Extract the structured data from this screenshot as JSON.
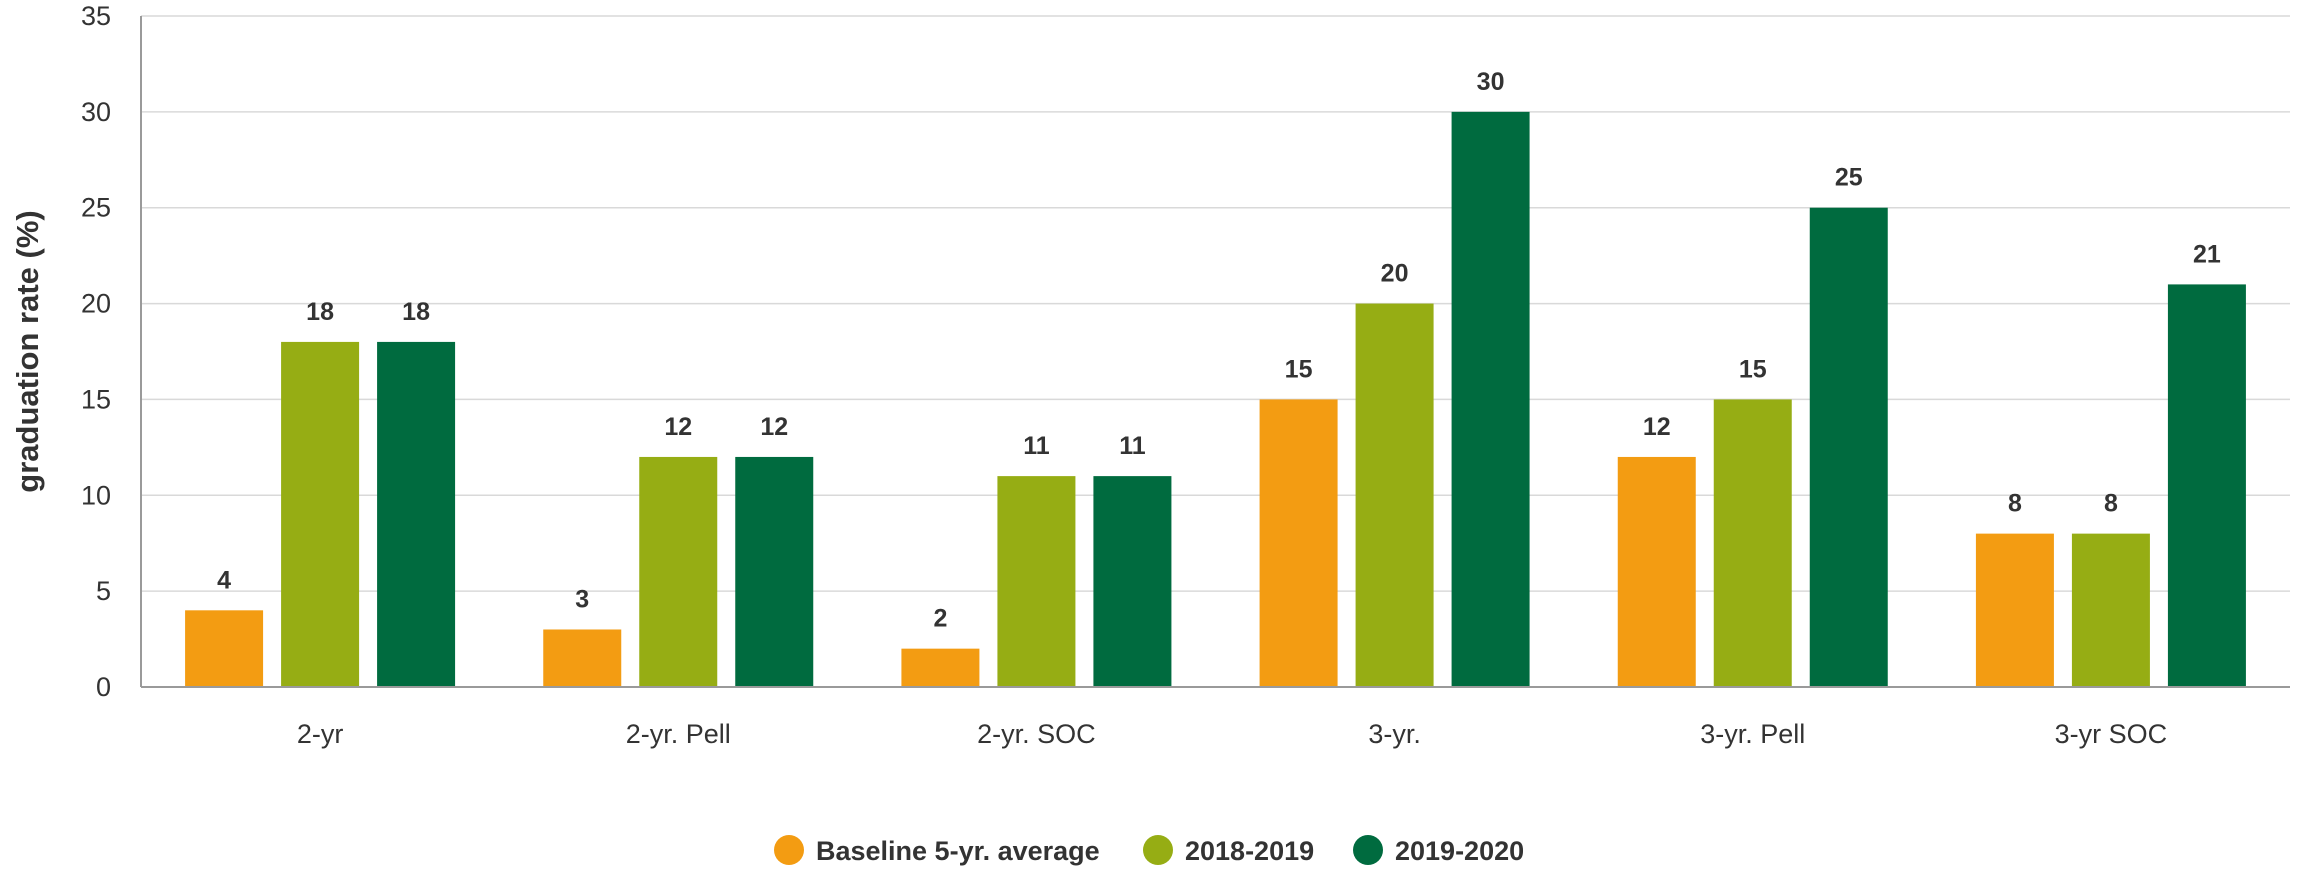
{
  "chart_data": {
    "type": "bar",
    "title": "",
    "xlabel": "",
    "ylabel": "graduation rate (%)",
    "ylim": [
      0,
      35
    ],
    "yticks": [
      0,
      5,
      10,
      15,
      20,
      25,
      30,
      35
    ],
    "grid": true,
    "legend_position": "bottom",
    "categories": [
      "2-yr",
      "2-yr. Pell",
      "2-yr. SOC",
      "3-yr.",
      "3-yr. Pell",
      "3-yr SOC"
    ],
    "series": [
      {
        "name": "Baseline 5-yr. average",
        "color": "#f39c12",
        "values": [
          4,
          3,
          2,
          15,
          12,
          8
        ]
      },
      {
        "name": "2018-2019",
        "color": "#96ad14",
        "values": [
          18,
          12,
          11,
          20,
          15,
          8
        ]
      },
      {
        "name": "2019-2020",
        "color": "#006b3f",
        "values": [
          18,
          12,
          11,
          30,
          25,
          21
        ]
      }
    ]
  }
}
